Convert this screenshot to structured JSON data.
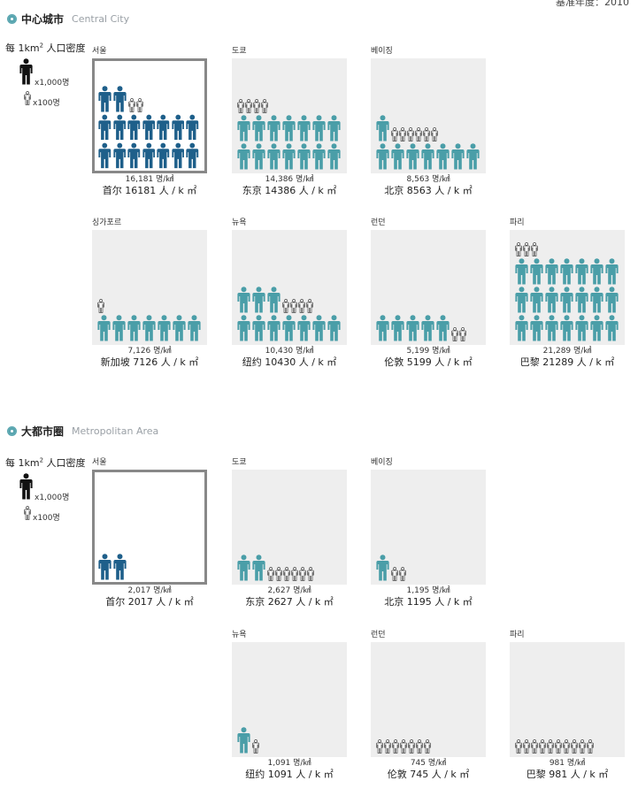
{
  "base_year": "基准年度：2010",
  "legend": {
    "title_prefix": "每 1km",
    "title_sup": "2",
    "title_suffix": " 人口密度",
    "big_label": "x1,000명",
    "small_label": "x100명",
    "big_icon": "large-person-icon",
    "small_icon": "small-outline-person-icon"
  },
  "colors": {
    "seoul": "#1e5f8a",
    "other": "#4a9ea8",
    "box_bg": "#eeeeee",
    "highlight_border": "#888888"
  },
  "sections": [
    {
      "title_cn": "中心城市",
      "title_en": "Central City",
      "cities": [
        {
          "ko": "서울",
          "cn": "首尔",
          "value": 16181,
          "ko_label": "16,181 명/㎢",
          "cn_label": "首尔  16181 人 / k ㎡",
          "highlight": true
        },
        {
          "ko": "도쿄",
          "cn": "东京",
          "value": 14386,
          "ko_label": "14,386 명/㎢",
          "cn_label": "东京  14386 人 / k ㎡"
        },
        {
          "ko": "베이징",
          "cn": "北京",
          "value": 8563,
          "ko_label": "8,563 명/㎢",
          "cn_label": "北京  8563 人 / k ㎡"
        },
        {
          "ko": "싱가포르",
          "cn": "新加坡",
          "value": 7126,
          "ko_label": "7,126 명/㎢",
          "cn_label": "新加坡  7126 人 / k ㎡"
        },
        {
          "ko": "뉴욕",
          "cn": "纽约",
          "value": 10430,
          "ko_label": "10,430 명/㎢",
          "cn_label": "纽约  10430 人 / k ㎡"
        },
        {
          "ko": "런던",
          "cn": "伦敦",
          "value": 5199,
          "ko_label": "5,199 명/㎢",
          "cn_label": "伦敦  5199 人 / k ㎡"
        },
        {
          "ko": "파리",
          "cn": "巴黎",
          "value": 21289,
          "ko_label": "21,289 명/㎢",
          "cn_label": "巴黎  21289 人 / k ㎡"
        }
      ]
    },
    {
      "title_cn": "大都市圈",
      "title_en": "Metropolitan Area",
      "cities": [
        {
          "ko": "서울",
          "cn": "首尔",
          "value": 2017,
          "ko_label": "2,017 명/㎢",
          "cn_label": "首尔  2017 人 / k ㎡",
          "highlight": true
        },
        {
          "ko": "도쿄",
          "cn": "东京",
          "value": 2627,
          "ko_label": "2,627 명/㎢",
          "cn_label": "东京  2627 人 / k ㎡"
        },
        {
          "ko": "베이징",
          "cn": "北京",
          "value": 1195,
          "ko_label": "1,195 명/㎢",
          "cn_label": "北京  1195 人 / k ㎡"
        },
        {
          "ko": "뉴욕",
          "cn": "纽约",
          "value": 1091,
          "ko_label": "1,091 명/㎢",
          "cn_label": "纽约  1091 人 / k ㎡"
        },
        {
          "ko": "런던",
          "cn": "伦敦",
          "value": 745,
          "ko_label": "745 명/㎢",
          "cn_label": "伦敦  745 人 / k ㎡"
        },
        {
          "ko": "파리",
          "cn": "巴黎",
          "value": 981,
          "ko_label": "981 명/㎢",
          "cn_label": "巴黎  981 人 / k ㎡"
        }
      ]
    }
  ],
  "chart_data": {
    "type": "bar",
    "unit": "명/㎢",
    "categories": [
      "서울",
      "도쿄",
      "베이징",
      "싱가포르",
      "뉴욕",
      "런던",
      "파리"
    ],
    "series": [
      {
        "name": "中心城市",
        "values": [
          16181,
          14386,
          8563,
          7126,
          10430,
          5199,
          21289
        ]
      },
      {
        "name": "大都市圈",
        "values": [
          2017,
          2627,
          1195,
          null,
          1091,
          745,
          981
        ]
      }
    ]
  }
}
